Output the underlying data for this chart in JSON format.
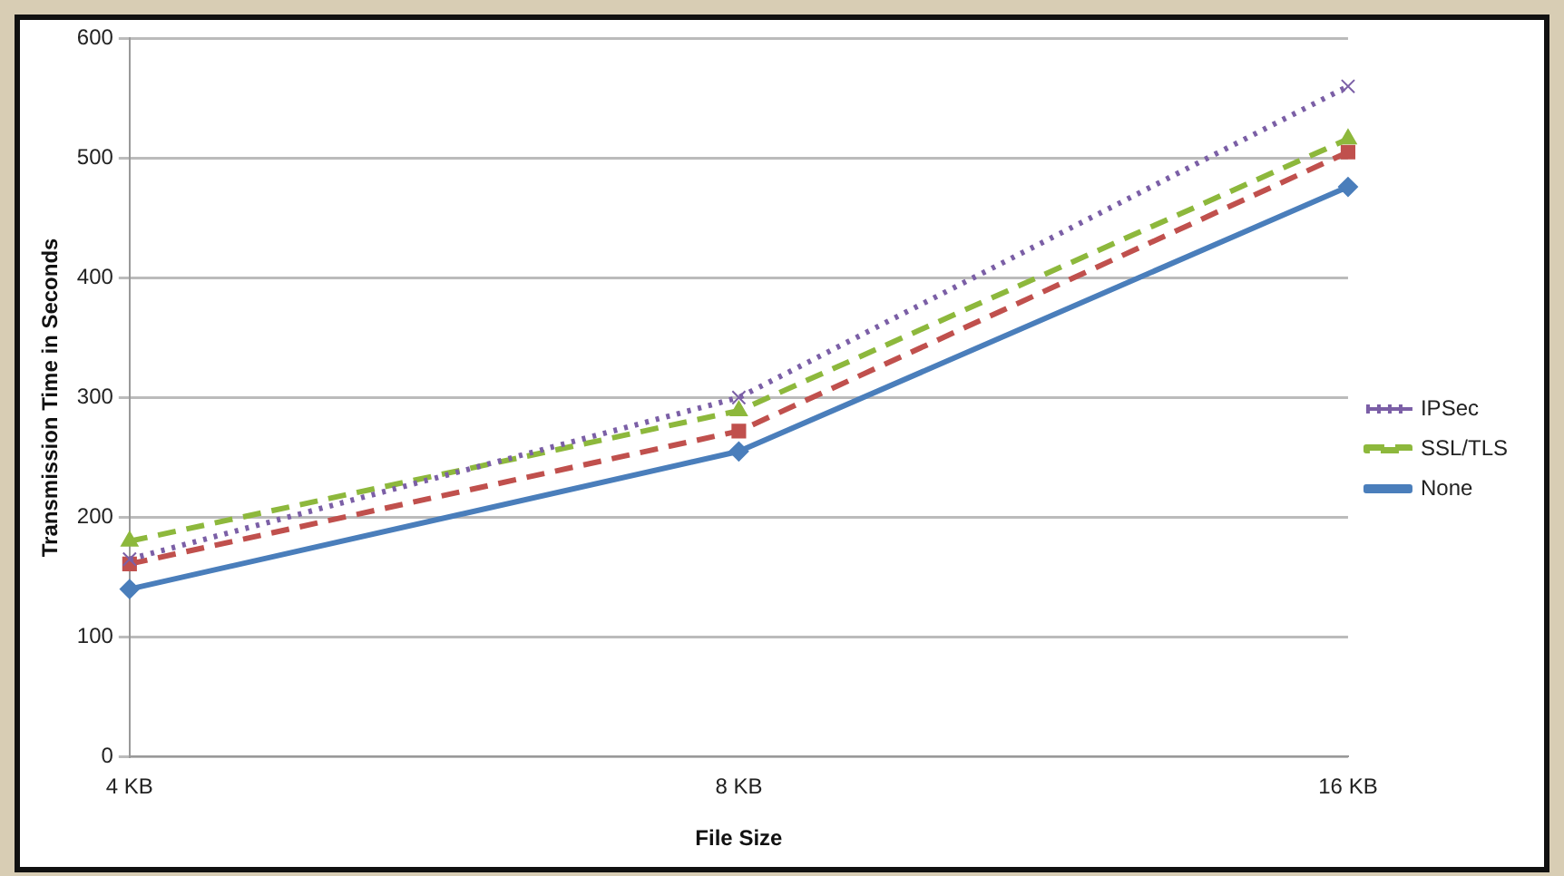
{
  "chart_data": {
    "type": "line",
    "xlabel": "File Size",
    "ylabel": "Transmission Time in Seconds",
    "categories": [
      "4 KB",
      "8 KB",
      "16 KB"
    ],
    "series": [
      {
        "name": "IPSec",
        "color": "#7b5fa6",
        "values": [
          165,
          300,
          560
        ],
        "marker": "cross",
        "line_style": "dotted"
      },
      {
        "name": "SSL/TLS",
        "color": "#8db83c",
        "values": [
          180,
          289,
          516
        ],
        "marker": "triangle",
        "line_style": "dashed"
      },
      {
        "color": "#c0504d",
        "values": [
          161,
          272,
          505
        ],
        "marker": "square",
        "line_style": "dashed"
      },
      {
        "name": "None",
        "color": "#4a7ebb",
        "values": [
          140,
          255,
          476
        ],
        "marker": "diamond",
        "line_style": "solid"
      }
    ],
    "ylim": [
      0,
      600
    ],
    "yticks": [
      0,
      100,
      200,
      300,
      400,
      500,
      600
    ],
    "grid": "y",
    "legend": "right"
  }
}
